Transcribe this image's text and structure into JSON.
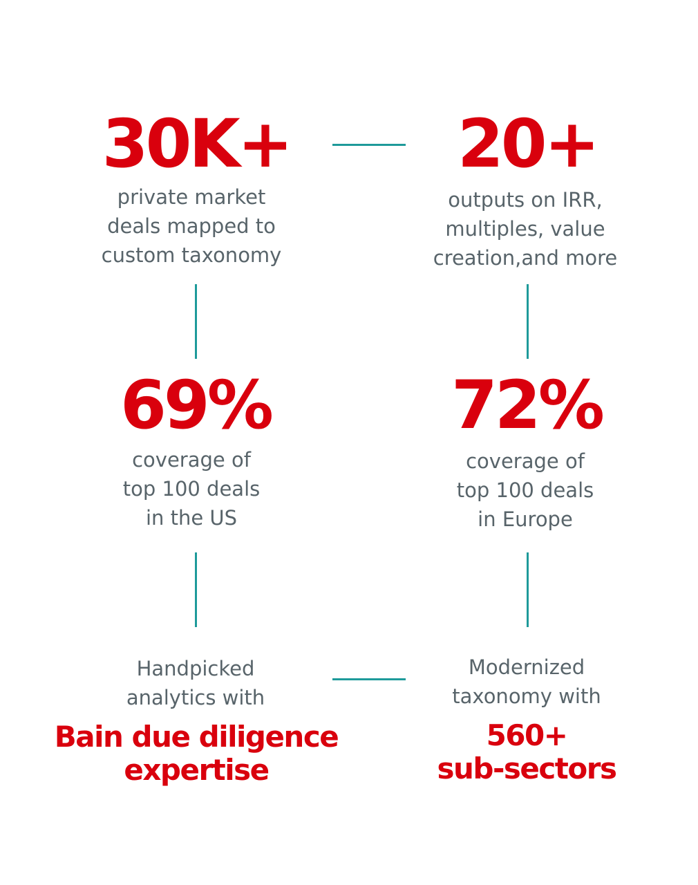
{
  "stats": {
    "deals": {
      "value": "30K+",
      "desc": [
        "private market",
        "deals mapped to",
        "custom taxonomy"
      ]
    },
    "outputs": {
      "value": "20+",
      "desc": [
        "outputs on IRR,",
        "multiples, value",
        "creation,and more"
      ]
    },
    "us_coverage": {
      "value": "69%",
      "desc": [
        "coverage of",
        "top 100 deals",
        "in the US"
      ]
    },
    "eu_coverage": {
      "value": "72%",
      "desc": [
        "coverage of",
        "top 100 deals",
        "in Europe"
      ]
    },
    "analytics": {
      "desc": [
        "Handpicked",
        "analytics with"
      ],
      "highlight": [
        "Bain due diligence",
        "expertise"
      ]
    },
    "taxonomy": {
      "desc": [
        "Modernized",
        "taxonomy with"
      ],
      "highlight": [
        "560+",
        "sub-sectors"
      ]
    }
  },
  "colors": {
    "accent_red": "#d9000d",
    "text_gray": "#58646a",
    "connector_teal": "#1e9a9a"
  }
}
